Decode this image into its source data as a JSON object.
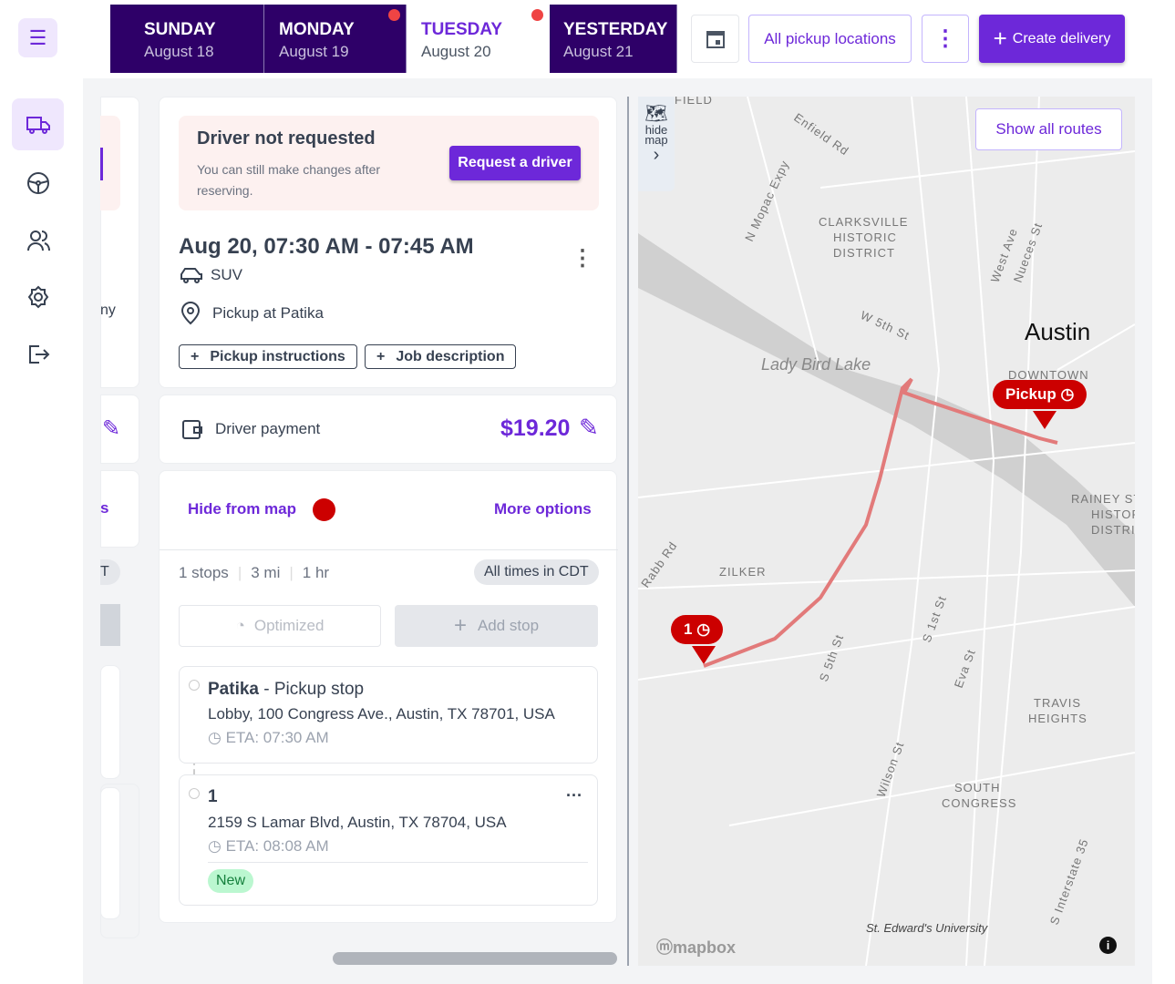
{
  "days": [
    {
      "name": "SUNDAY",
      "date": "August 18"
    },
    {
      "name": "MONDAY",
      "date": "August 19"
    },
    {
      "name": "TUESDAY",
      "date": "August 20"
    },
    {
      "name": "YESTERDAY",
      "date": "August 21"
    }
  ],
  "toolbar": {
    "locations": "All pickup locations",
    "create": "Create delivery"
  },
  "left_partial": {
    "t1": "ny",
    "t2": "s",
    "t3": "T"
  },
  "alert": {
    "title": "Driver not requested",
    "text": "You can still make changes after reserving.",
    "button": "Request a driver"
  },
  "job": {
    "time": "Aug 20, 07:30 AM - 07:45 AM",
    "vehicle": "SUV",
    "pickup": "Pickup at Patika",
    "chip1": "Pickup instructions",
    "chip2": "Job description"
  },
  "payment": {
    "label": "Driver payment",
    "amount": "$19.20"
  },
  "options": {
    "hide": "Hide from map",
    "more": "More options",
    "route_color": "#cc0000"
  },
  "summary": {
    "stops": "1 stops",
    "dist": "3 mi",
    "dur": "1 hr",
    "tz": "All times in CDT"
  },
  "actions": {
    "optimized": "Optimized",
    "add": "Add stop"
  },
  "stops": [
    {
      "name": "Patika",
      "type": " - Pickup stop",
      "addr": "Lobby, 100 Congress Ave., Austin, TX 78701, USA",
      "eta": "ETA: 07:30 AM"
    },
    {
      "name": "1",
      "addr": "2159 S Lamar Blvd, Austin, TX 78704, USA",
      "eta": "ETA: 08:08 AM",
      "badge": "New"
    }
  ],
  "map": {
    "hide": "hide map",
    "show_routes": "Show all routes",
    "pickup": "Pickup",
    "stop1": "1",
    "city": "Austin",
    "labels": [
      "FIELD",
      "Enfield Rd",
      "N Mopac Expy",
      "CLARKSVILLE",
      "HISTORIC",
      "DISTRICT",
      "West Ave",
      "Nueces St",
      "W 5th St",
      "Lady Bird Lake",
      "DOWNTOWN",
      "RAINEY ST",
      "HISTOR",
      "DISTRI",
      "Rabb Rd",
      "ZILKER",
      "S 5th St",
      "S 1st St",
      "Eva St",
      "TRAVIS",
      "HEIGHTS",
      "Wilson St",
      "SOUTH",
      "CONGRESS",
      "S Interstate 35",
      "St. Edward's University"
    ],
    "attribution": "mapbox"
  }
}
